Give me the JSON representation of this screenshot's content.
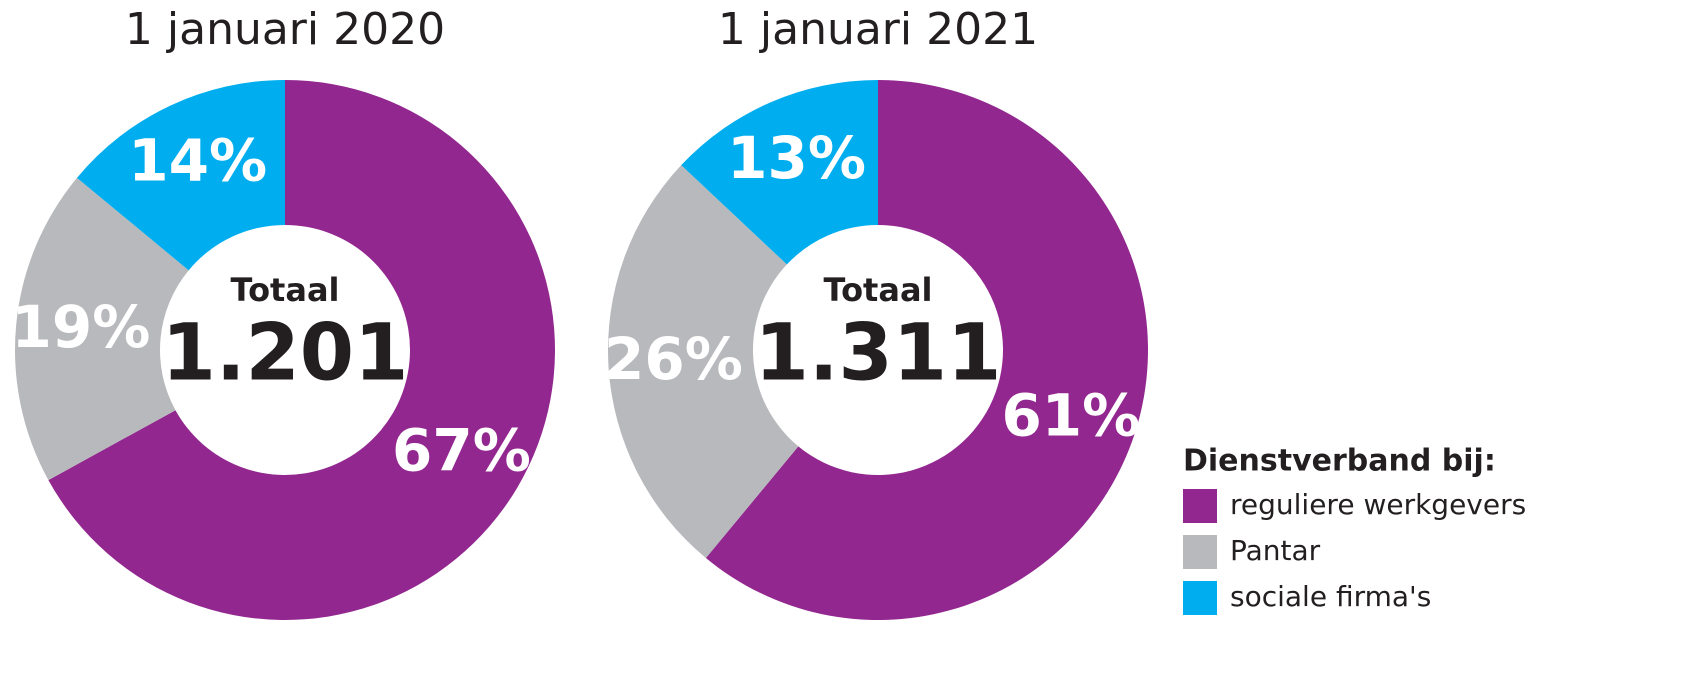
{
  "chart_data": [
    {
      "type": "pie",
      "title": "1 januari 2020",
      "values": [
        67,
        19,
        14
      ],
      "value_labels": [
        "67%",
        "19%",
        "14%"
      ],
      "center_title": "Totaal",
      "center_value": "1.201"
    },
    {
      "type": "pie",
      "title": "1 januari 2021",
      "values": [
        61,
        26,
        13
      ],
      "value_labels": [
        "61%",
        "26%",
        "13%"
      ],
      "center_title": "Totaal",
      "center_value": "1.311"
    }
  ],
  "legend": {
    "title": "Dienstverband bij:",
    "items": [
      {
        "name": "reguliere werkgevers",
        "color": "#92278f"
      },
      {
        "name": "Pantar",
        "color": "#b8b9bc"
      },
      {
        "name": "sociale firma's",
        "color": "#00aeef"
      }
    ]
  }
}
